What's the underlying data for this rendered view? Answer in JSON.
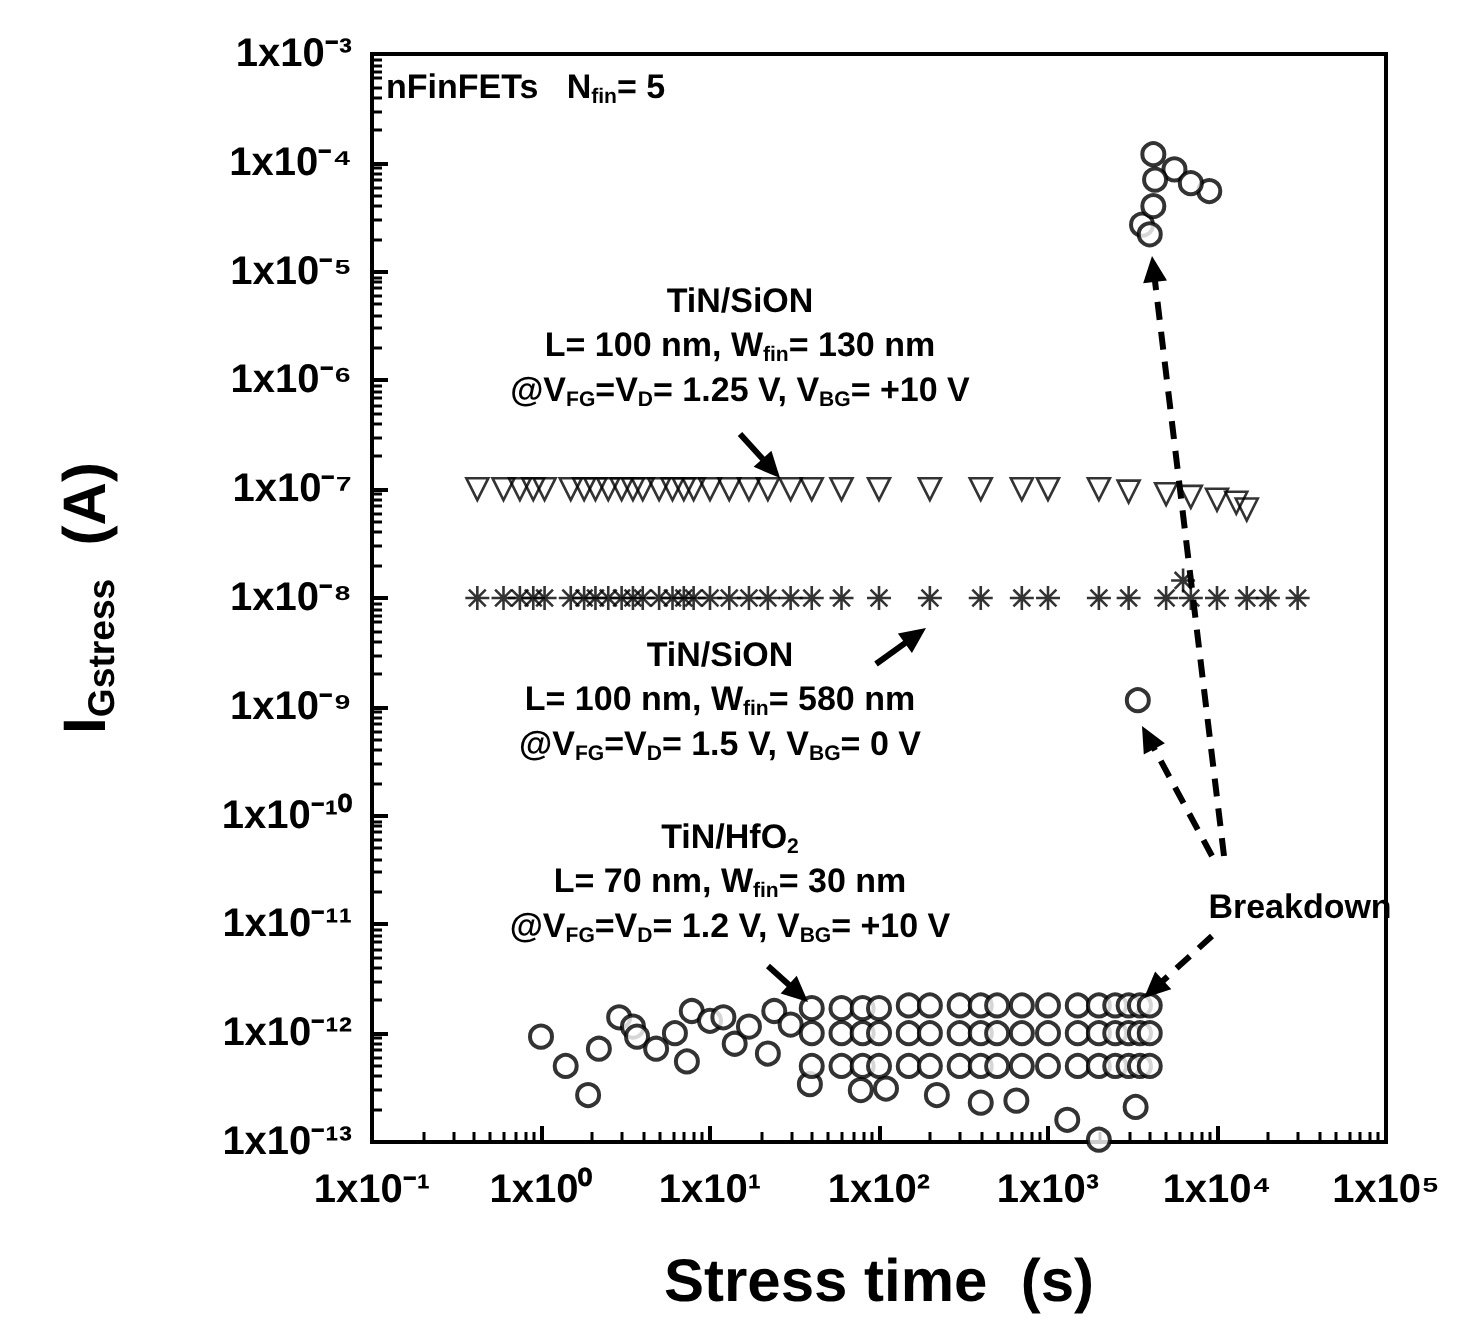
{
  "chart_data": {
    "type": "scatter",
    "xlabel": "Stress time  (s)",
    "ylabel": "I$_{Gstress}$  (A)",
    "log": "xy",
    "grid": false,
    "xlim": [
      0.1,
      100000
    ],
    "ylim": [
      1e-13,
      0.001
    ],
    "xticks": [
      {
        "value": 0.1,
        "label": "1x10⁻¹"
      },
      {
        "value": 1,
        "label": "1x10⁰"
      },
      {
        "value": 10,
        "label": "1x10¹"
      },
      {
        "value": 100,
        "label": "1x10²"
      },
      {
        "value": 1000,
        "label": "1x10³"
      },
      {
        "value": 10000,
        "label": "1x10⁴"
      },
      {
        "value": 100000,
        "label": "1x10⁵"
      }
    ],
    "yticks": [
      {
        "value": 1e-13,
        "label": "1x10⁻¹³"
      },
      {
        "value": 1e-12,
        "label": "1x10⁻¹²"
      },
      {
        "value": 1e-11,
        "label": "1x10⁻¹¹"
      },
      {
        "value": 1e-10,
        "label": "1x10⁻¹⁰"
      },
      {
        "value": 1e-09,
        "label": "1x10⁻⁹"
      },
      {
        "value": 1e-08,
        "label": "1x10⁻⁸"
      },
      {
        "value": 1e-07,
        "label": "1x10⁻⁷"
      },
      {
        "value": 1e-06,
        "label": "1x10⁻⁶"
      },
      {
        "value": 1e-05,
        "label": "1x10⁻⁵"
      },
      {
        "value": 0.0001,
        "label": "1x10⁻⁴"
      },
      {
        "value": 0.001,
        "label": "1x10⁻³"
      }
    ],
    "annotations": [
      "nFinFETs   N$_{fin}$= 5",
      "TiN/SiON\nL= 100 nm, W$_{fin}$= 130 nm\n@V$_{FG}$=V$_{D}$= 1.25 V, V$_{BG}$= +10 V",
      "TiN/SiON\nL= 100 nm, W$_{fin}$= 580 nm\n@V$_{FG}$=V$_{D}$= 1.5 V, V$_{BG}$= 0 V",
      "TiN/HfO$_{2}$\nL= 70 nm, W$_{fin}$= 30 nm\n@V$_{FG}$=V$_{D}$= 1.2 V, V$_{BG}$= +10 V",
      "Breakdown"
    ],
    "series": [
      {
        "marker": "triangle",
        "color": "#000000",
        "x": [
          0.42,
          0.6,
          0.75,
          0.9,
          1.05,
          1.5,
          1.8,
          2.1,
          2.5,
          3,
          3.5,
          4,
          5,
          6,
          7,
          8,
          10,
          13,
          17,
          22,
          30,
          40,
          60,
          100,
          200,
          400,
          700,
          1000,
          2000,
          3000,
          5000,
          7000,
          10000,
          13000,
          15000
        ],
        "values": [
          1e-07,
          1e-07,
          1e-07,
          1e-07,
          1e-07,
          1e-07,
          1e-07,
          1e-07,
          1e-07,
          1e-07,
          1e-07,
          1e-07,
          1e-07,
          1e-07,
          1e-07,
          1e-07,
          1e-07,
          1e-07,
          1e-07,
          1e-07,
          1e-07,
          1e-07,
          1e-07,
          1e-07,
          1e-07,
          1e-07,
          1e-07,
          1e-07,
          1e-07,
          9.5e-08,
          9e-08,
          8.5e-08,
          8e-08,
          7.5e-08,
          6.5e-08
        ]
      },
      {
        "marker": "cross",
        "color": "#000000",
        "x": [
          0.42,
          0.6,
          0.75,
          0.9,
          1.05,
          1.5,
          1.8,
          2.1,
          2.5,
          3,
          3.5,
          4,
          5,
          6,
          7,
          8,
          10,
          13,
          17,
          22,
          30,
          40,
          60,
          100,
          200,
          400,
          700,
          1000,
          2000,
          3000,
          5000,
          6300,
          7000,
          10000,
          15000,
          20000,
          30000
        ],
        "values": [
          1e-08,
          1e-08,
          1e-08,
          1e-08,
          1e-08,
          1e-08,
          1e-08,
          1e-08,
          1e-08,
          1e-08,
          1e-08,
          1e-08,
          1e-08,
          1e-08,
          1e-08,
          1e-08,
          1e-08,
          1e-08,
          1e-08,
          1e-08,
          1e-08,
          1e-08,
          1e-08,
          1e-08,
          1e-08,
          1e-08,
          1e-08,
          1e-08,
          1e-08,
          1e-08,
          1e-08,
          1.45e-08,
          1e-08,
          1e-08,
          1e-08,
          1e-08,
          1e-08
        ]
      },
      {
        "marker": "circle",
        "color": "#000000",
        "x": [
          1,
          1.4,
          1.9,
          2.2,
          2.9,
          3.5,
          3.7,
          4.8,
          6.2,
          7.3,
          7.8,
          10,
          12,
          14,
          17,
          22,
          24,
          39,
          78,
          110,
          220,
          400,
          650,
          1300,
          2000,
          3300,
          30,
          40,
          60,
          80,
          100,
          150,
          200,
          300,
          400,
          500,
          700,
          1000,
          1500,
          2000,
          2500,
          3000,
          3500,
          4000,
          40,
          60,
          80,
          100,
          150,
          200,
          300,
          400,
          500,
          700,
          1000,
          1500,
          2000,
          2500,
          3000,
          3500,
          4000,
          40,
          60,
          80,
          100,
          150,
          200,
          300,
          400,
          500,
          700,
          1000,
          1500,
          2000,
          2500,
          3000,
          3500,
          4000,
          3400,
          4200,
          3600,
          4000,
          5600,
          9000,
          7000,
          4300,
          4200
        ],
        "values": [
          9.3e-13,
          5e-13,
          2.7e-13,
          7.2e-13,
          1.4e-12,
          1.15e-12,
          9.3e-13,
          7.2e-13,
          1e-12,
          5.5e-13,
          1.6e-12,
          1.3e-12,
          1.4e-12,
          8e-13,
          1.15e-12,
          6.5e-13,
          1.6e-12,
          3.4e-13,
          3e-13,
          3.1e-13,
          2.7e-13,
          2.3e-13,
          2.4e-13,
          1.6e-13,
          1.05e-13,
          2.1e-13,
          1.2e-12,
          5e-13,
          5e-13,
          5e-13,
          5e-13,
          5e-13,
          5e-13,
          5e-13,
          5e-13,
          5e-13,
          5e-13,
          5e-13,
          5e-13,
          5e-13,
          5e-13,
          5e-13,
          5e-13,
          5e-13,
          1e-12,
          1e-12,
          1e-12,
          1e-12,
          1e-12,
          1e-12,
          1e-12,
          1e-12,
          1e-12,
          1e-12,
          1e-12,
          1e-12,
          1e-12,
          1e-12,
          1e-12,
          1e-12,
          1e-12,
          1.7e-12,
          1.7e-12,
          1.7e-12,
          1.7e-12,
          1.8e-12,
          1.8e-12,
          1.8e-12,
          1.8e-12,
          1.8e-12,
          1.8e-12,
          1.8e-12,
          1.8e-12,
          1.8e-12,
          1.8e-12,
          1.8e-12,
          1.8e-12,
          1.8e-12,
          1.15e-09,
          0.00012,
          2.7e-05,
          2.2e-05,
          8.7e-05,
          5.5e-05,
          6.5e-05,
          7e-05,
          4e-05
        ]
      }
    ]
  }
}
